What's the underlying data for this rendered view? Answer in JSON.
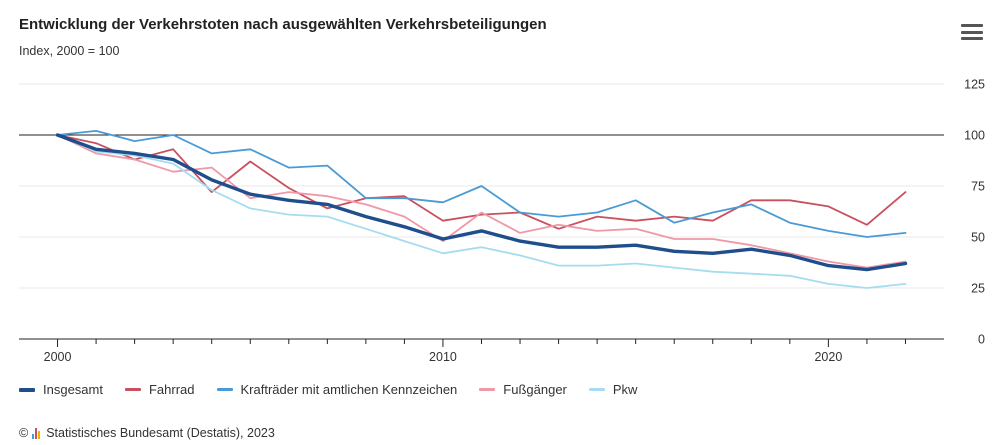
{
  "title": "Entwicklung der Verkehrstoten nach ausgewählten Verkehrsbeteiligungen",
  "subtitle": "Index, 2000 = 100",
  "menu_icon": "hamburger-menu-icon",
  "source": {
    "copyright": "©",
    "text": "Statistisches Bundesamt (Destatis), 2023"
  },
  "chart_data": {
    "type": "line",
    "title": "Entwicklung der Verkehrstoten nach ausgewählten Verkehrsbeteiligungen",
    "subtitle": "Index, 2000 = 100",
    "x": [
      2000,
      2001,
      2002,
      2003,
      2004,
      2005,
      2006,
      2007,
      2008,
      2009,
      2010,
      2011,
      2012,
      2013,
      2014,
      2015,
      2016,
      2017,
      2018,
      2019,
      2020,
      2021,
      2022
    ],
    "xlim": [
      1999,
      2023
    ],
    "ylim": [
      0,
      125
    ],
    "x_ticks": [
      2000,
      2010,
      2020
    ],
    "y_ticks": [
      0,
      25,
      50,
      75,
      100,
      125
    ],
    "y_axis_position": "right",
    "reference_line": 100,
    "grid": "horizontal",
    "legend_position": "bottom",
    "series": [
      {
        "name": "Insgesamt",
        "color": "#1f4e8c",
        "width": 3.4,
        "values": [
          100,
          93,
          91,
          88,
          78,
          71,
          68,
          66,
          60,
          55,
          49,
          53,
          48,
          45,
          45,
          46,
          43,
          42,
          44,
          41,
          36,
          34,
          37
        ]
      },
      {
        "name": "Fahrrad",
        "color": "#c9505e",
        "width": 1.8,
        "values": [
          100,
          96,
          88,
          93,
          72,
          87,
          74,
          64,
          69,
          70,
          58,
          61,
          62,
          54,
          60,
          58,
          60,
          58,
          68,
          68,
          65,
          56,
          72
        ]
      },
      {
        "name": "Krafträder mit amtlichen Kennzeichen",
        "color": "#4a9bd5",
        "width": 1.8,
        "values": [
          100,
          102,
          97,
          100,
          91,
          93,
          84,
          85,
          69,
          69,
          67,
          75,
          62,
          60,
          62,
          68,
          57,
          62,
          66,
          57,
          53,
          50,
          52
        ]
      },
      {
        "name": "Fußgänger",
        "color": "#ef98a8",
        "width": 1.8,
        "values": [
          100,
          91,
          88,
          82,
          84,
          69,
          72,
          70,
          66,
          60,
          48,
          62,
          52,
          56,
          53,
          54,
          49,
          49,
          46,
          42,
          38,
          35,
          38
        ]
      },
      {
        "name": "Pkw",
        "color": "#a6dcf0",
        "width": 1.8,
        "values": [
          100,
          92,
          90,
          86,
          73,
          64,
          61,
          60,
          54,
          48,
          42,
          45,
          41,
          36,
          36,
          37,
          35,
          33,
          32,
          31,
          27,
          25,
          27
        ]
      }
    ]
  }
}
